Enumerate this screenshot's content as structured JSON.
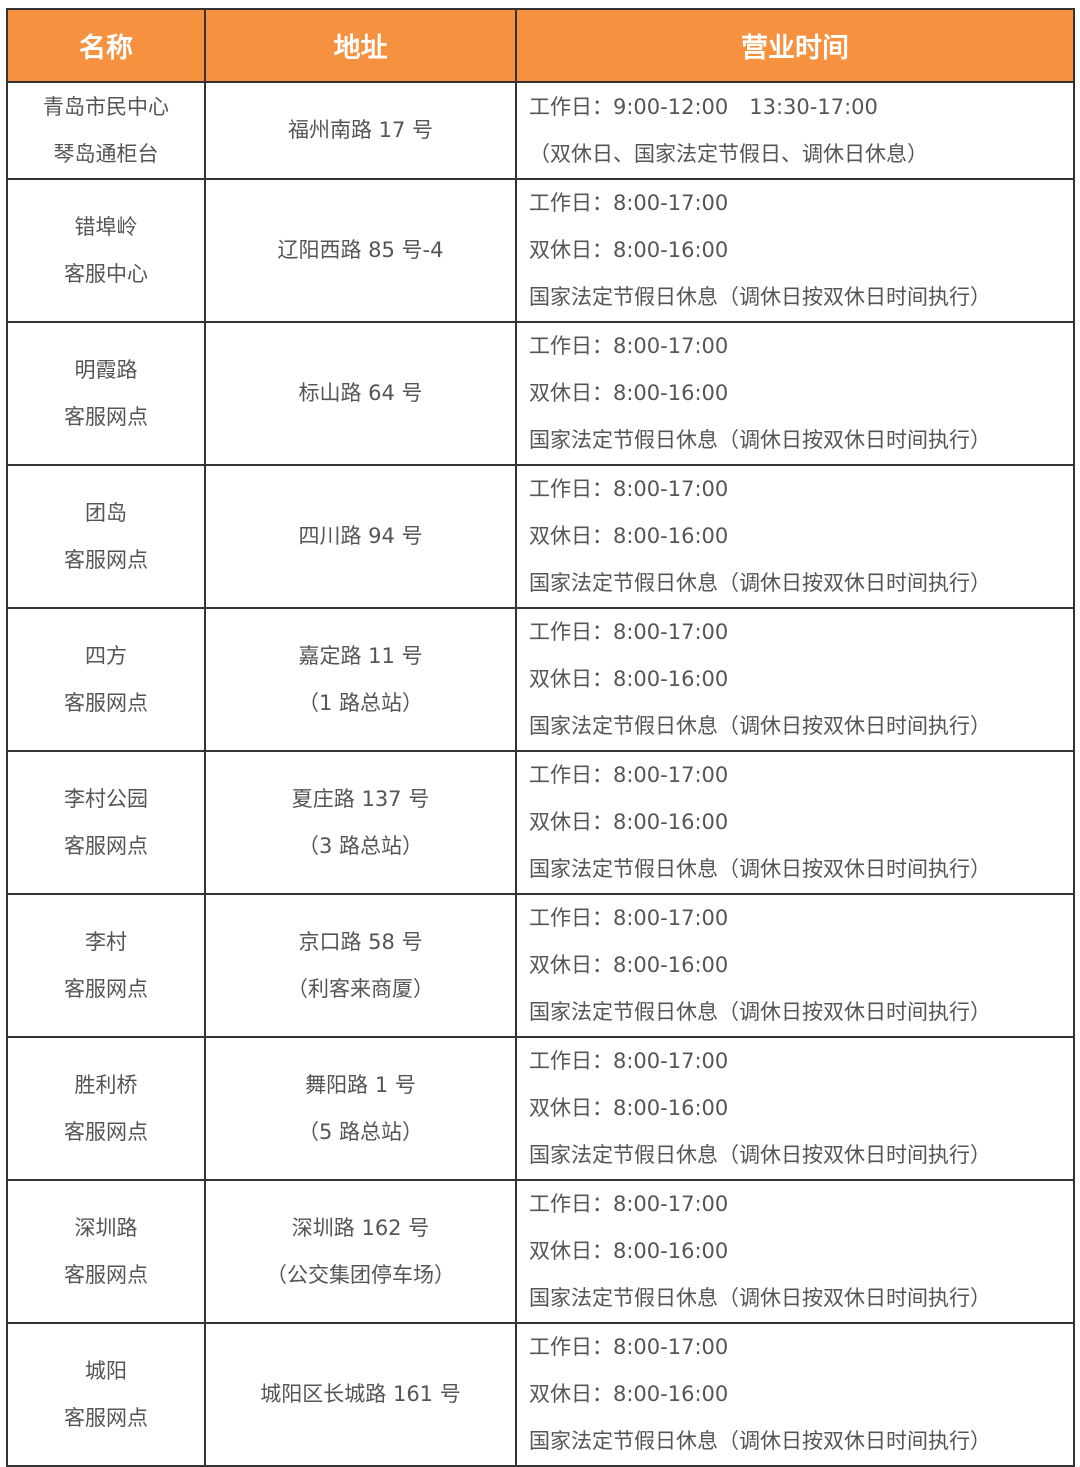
{
  "colors": {
    "header_bg": "#F5913F",
    "header_text": "#FFFFFF",
    "text": "#555555",
    "border": "#333333"
  },
  "headers": [
    "名称",
    "地址",
    "营业时间"
  ],
  "rows": [
    {
      "name": [
        "青岛市民中心",
        "琴岛通柜台"
      ],
      "address": [
        "福州南路 17 号"
      ],
      "hours": [
        "工作日：9:00-12:00　13:30-17:00",
        "（双休日、国家法定节假日、调休日休息）"
      ]
    },
    {
      "name": [
        "错埠岭",
        "客服中心"
      ],
      "address": [
        "辽阳西路 85 号-4"
      ],
      "hours": [
        "工作日：8:00-17:00",
        "双休日：8:00-16:00",
        "国家法定节假日休息（调休日按双休日时间执行）"
      ]
    },
    {
      "name": [
        "明霞路",
        "客服网点"
      ],
      "address": [
        "标山路 64 号"
      ],
      "hours": [
        "工作日：8:00-17:00",
        "双休日：8:00-16:00",
        "国家法定节假日休息（调休日按双休日时间执行）"
      ]
    },
    {
      "name": [
        "团岛",
        "客服网点"
      ],
      "address": [
        "四川路 94 号"
      ],
      "hours": [
        "工作日：8:00-17:00",
        "双休日：8:00-16:00",
        "国家法定节假日休息（调休日按双休日时间执行）"
      ]
    },
    {
      "name": [
        "四方",
        "客服网点"
      ],
      "address": [
        "嘉定路 11 号",
        "（1 路总站）"
      ],
      "hours": [
        "工作日：8:00-17:00",
        "双休日：8:00-16:00",
        "国家法定节假日休息（调休日按双休日时间执行）"
      ]
    },
    {
      "name": [
        "李村公园",
        "客服网点"
      ],
      "address": [
        "夏庄路 137 号",
        "（3 路总站）"
      ],
      "hours": [
        "工作日：8:00-17:00",
        "双休日：8:00-16:00",
        "国家法定节假日休息（调休日按双休日时间执行）"
      ]
    },
    {
      "name": [
        "李村",
        "客服网点"
      ],
      "address": [
        "京口路 58 号",
        "（利客来商厦）"
      ],
      "hours": [
        "工作日：8:00-17:00",
        "双休日：8:00-16:00",
        "国家法定节假日休息（调休日按双休日时间执行）"
      ]
    },
    {
      "name": [
        "胜利桥",
        "客服网点"
      ],
      "address": [
        "舞阳路 1 号",
        "（5 路总站）"
      ],
      "hours": [
        "工作日：8:00-17:00",
        "双休日：8:00-16:00",
        "国家法定节假日休息（调休日按双休日时间执行）"
      ]
    },
    {
      "name": [
        "深圳路",
        "客服网点"
      ],
      "address": [
        "深圳路 162 号",
        "（公交集团停车场）"
      ],
      "hours": [
        "工作日：8:00-17:00",
        "双休日：8:00-16:00",
        "国家法定节假日休息（调休日按双休日时间执行）"
      ]
    },
    {
      "name": [
        "城阳",
        "客服网点"
      ],
      "address": [
        "城阳区长城路 161 号"
      ],
      "hours": [
        "工作日：8:00-17:00",
        "双休日：8:00-16:00",
        "国家法定节假日休息（调休日按双休日时间执行）"
      ]
    }
  ]
}
